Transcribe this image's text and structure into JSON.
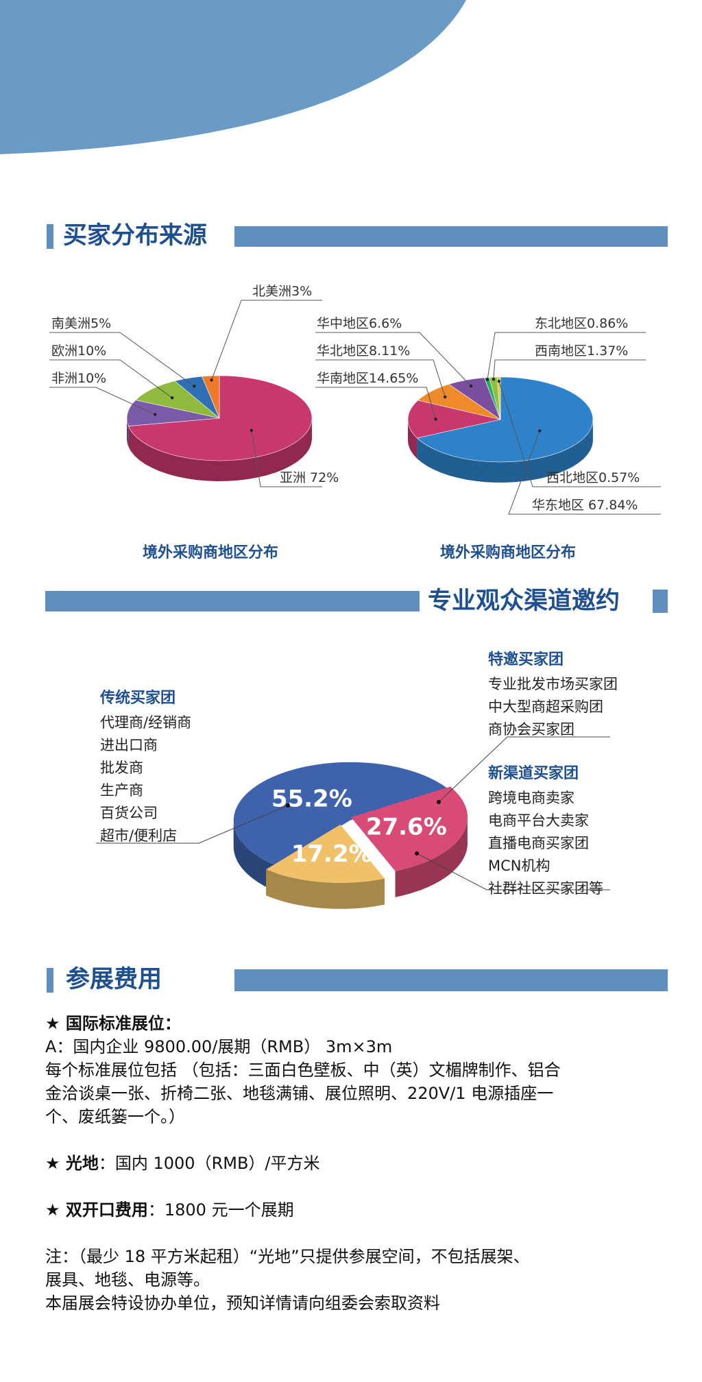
{
  "section1": {
    "title": "买家分布来源"
  },
  "section2": {
    "title": "专业观众渠道邀约"
  },
  "section3": {
    "title": "参展费用"
  },
  "colors": {
    "brand_blue": "#1e4f91",
    "bar_blue": "#5f8fbd",
    "header_blue": "#6a9bc6"
  },
  "chart_data": [
    {
      "type": "pie",
      "title": "境外采购商地区分布",
      "slices": [
        {
          "label": "亚洲 72%",
          "value": 72,
          "color": "#c8386e"
        },
        {
          "label": "非洲10%",
          "value": 10,
          "color": "#7b5aa8"
        },
        {
          "label": "欧洲10%",
          "value": 10,
          "color": "#8fba3e"
        },
        {
          "label": "南美洲5%",
          "value": 5,
          "color": "#2e6fb5"
        },
        {
          "label": "北美洲3%",
          "value": 3,
          "color": "#ef7a2a"
        }
      ]
    },
    {
      "type": "pie",
      "title": "境外采购商地区分布",
      "slices": [
        {
          "label": "华东地区 67.84%",
          "value": 67.84,
          "color": "#2e82c9"
        },
        {
          "label": "华南地区14.65%",
          "value": 14.65,
          "color": "#c8386e"
        },
        {
          "label": "华北地区8.11%",
          "value": 8.11,
          "color": "#ef8a2a"
        },
        {
          "label": "华中地区6.6%",
          "value": 6.6,
          "color": "#7b4fa0"
        },
        {
          "label": "东北地区0.86%",
          "value": 0.86,
          "color": "#2aa86a"
        },
        {
          "label": "西南地区1.37%",
          "value": 1.37,
          "color": "#8fc03e"
        },
        {
          "label": "西北地区0.57%",
          "value": 0.57,
          "color": "#e2c23a"
        }
      ]
    },
    {
      "type": "pie",
      "slices": [
        {
          "label": "55.2%",
          "value": 55.2,
          "color": "#3f62ad"
        },
        {
          "label": "27.6%",
          "value": 27.6,
          "color": "#d94b77"
        },
        {
          "label": "17.2%",
          "value": 17.2,
          "color": "#f0c169"
        }
      ]
    }
  ],
  "groups": {
    "traditional": {
      "title": "传统买家团",
      "items": [
        "代理商/经销商",
        "进出口商",
        "批发商",
        "生产商",
        "百货公司",
        "超市/便利店"
      ]
    },
    "special": {
      "title": "特邀买家团",
      "items": [
        "专业批发市场买家团",
        "中大型商超采购团",
        "商协会买家团"
      ]
    },
    "newchannel": {
      "title": "新渠道买家团",
      "items": [
        "跨境电商卖家",
        "电商平台大卖家",
        "直播电商买家团",
        "MCN机构",
        "社群社区买家团等"
      ]
    }
  },
  "fees": {
    "booth_heading": "★ 国际标准展位：",
    "booth_price": "A：国内企业 9800.00/展期（RMB） 3m×3m",
    "booth_desc_1": "每个标准展位包括 （包括：三面白色壁板、中（英）文楣牌制作、铝合",
    "booth_desc_2": "金洽谈桌一张、折椅二张、地毯满铺、展位照明、220V/1 电源插座一",
    "booth_desc_3": "个、废纸篓一个。）",
    "space_heading": "★ 光地",
    "space_text": "：国内 1000（RMB）/平方米",
    "double_heading": "★ 双开口费用",
    "double_text": "：1800 元一个展期",
    "note_1": "注：（最少 18 平方米起租）“光地”只提供参展空间，不包括展架、",
    "note_2": "展具、地毯、电源等。",
    "note_3": "本届展会特设协办单位，预知详情请向组委会索取资料"
  }
}
